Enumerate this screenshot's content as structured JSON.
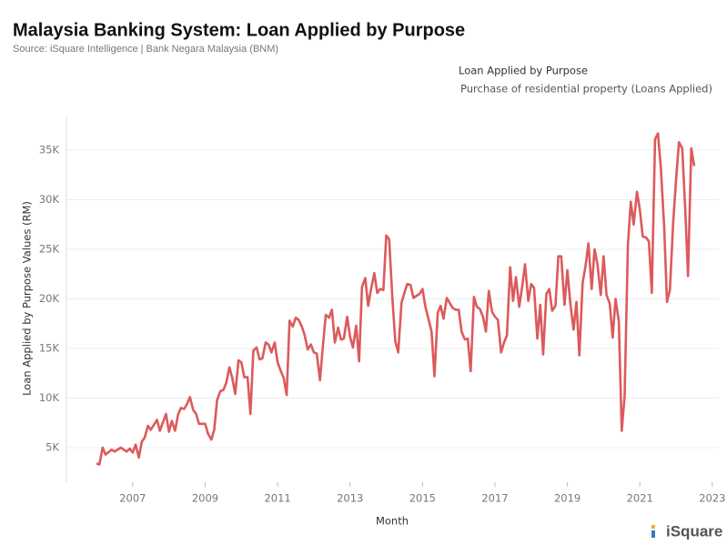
{
  "chart_data": {
    "type": "line",
    "title": "Malaysia Banking System: Loan Applied by Purpose",
    "subtitle": "Source: iSquare Intelligence | Bank Negara Malaysia (BNM)",
    "legend_title": "Loan Applied by Purpose",
    "x_label": "Month",
    "y_label": "Loan Applied by Purpose Values (RM)",
    "logo": "iSquare",
    "grid": true,
    "xlim": [
      2005.17,
      2023.18
    ],
    "ylim": [
      1510,
      38400
    ],
    "xticks": [
      2007,
      2009,
      2011,
      2013,
      2015,
      2017,
      2019,
      2021,
      2023
    ],
    "yticks": [
      {
        "value": 5000,
        "label": "5K"
      },
      {
        "value": 10000,
        "label": "10K"
      },
      {
        "value": 15000,
        "label": "15K"
      },
      {
        "value": 20000,
        "label": "20K"
      },
      {
        "value": 25000,
        "label": "25K"
      },
      {
        "value": 30000,
        "label": "30K"
      },
      {
        "value": 35000,
        "label": "35K"
      }
    ],
    "x": [
      2006.0,
      2006.08,
      2006.17,
      2006.25,
      2006.42,
      2006.5,
      2006.67,
      2006.83,
      2006.92,
      2007.0,
      2007.08,
      2007.17,
      2007.25,
      2007.33,
      2007.42,
      2007.5,
      2007.67,
      2007.75,
      2007.92,
      2008.0,
      2008.08,
      2008.17,
      2008.25,
      2008.33,
      2008.42,
      2008.5,
      2008.58,
      2008.67,
      2008.75,
      2008.83,
      2009.0,
      2009.08,
      2009.17,
      2009.25,
      2009.33,
      2009.42,
      2009.5,
      2009.58,
      2009.67,
      2009.75,
      2009.83,
      2009.92,
      2010.0,
      2010.08,
      2010.17,
      2010.25,
      2010.33,
      2010.42,
      2010.5,
      2010.58,
      2010.67,
      2010.75,
      2010.83,
      2010.92,
      2011.0,
      2011.08,
      2011.17,
      2011.25,
      2011.33,
      2011.42,
      2011.5,
      2011.58,
      2011.67,
      2011.75,
      2011.83,
      2011.92,
      2012.0,
      2012.08,
      2012.17,
      2012.25,
      2012.33,
      2012.42,
      2012.5,
      2012.58,
      2012.67,
      2012.75,
      2012.83,
      2012.92,
      2013.0,
      2013.08,
      2013.17,
      2013.25,
      2013.33,
      2013.42,
      2013.5,
      2013.58,
      2013.67,
      2013.75,
      2013.83,
      2013.92,
      2014.0,
      2014.08,
      2014.17,
      2014.25,
      2014.33,
      2014.42,
      2014.5,
      2014.58,
      2014.67,
      2014.75,
      2014.83,
      2014.92,
      2015.0,
      2015.08,
      2015.17,
      2015.25,
      2015.33,
      2015.42,
      2015.5,
      2015.58,
      2015.67,
      2015.75,
      2015.83,
      2015.92,
      2016.0,
      2016.08,
      2016.17,
      2016.25,
      2016.33,
      2016.42,
      2016.5,
      2016.58,
      2016.67,
      2016.75,
      2016.83,
      2016.92,
      2017.0,
      2017.08,
      2017.17,
      2017.25,
      2017.33,
      2017.42,
      2017.5,
      2017.58,
      2017.67,
      2017.75,
      2017.83,
      2017.92,
      2018.0,
      2018.08,
      2018.17,
      2018.25,
      2018.33,
      2018.42,
      2018.5,
      2018.58,
      2018.67,
      2018.75,
      2018.83,
      2018.92,
      2019.0,
      2019.08,
      2019.17,
      2019.25,
      2019.33,
      2019.42,
      2019.5,
      2019.58,
      2019.67,
      2019.75,
      2019.83,
      2019.92,
      2020.0,
      2020.08,
      2020.17,
      2020.25,
      2020.33,
      2020.42,
      2020.5,
      2020.58,
      2020.67,
      2020.75,
      2020.83,
      2020.92,
      2021.0,
      2021.08,
      2021.17,
      2021.25,
      2021.33,
      2021.42,
      2021.5,
      2021.58,
      2021.67,
      2021.75,
      2021.83,
      2021.92,
      2022.0,
      2022.08,
      2022.17,
      2022.25,
      2022.33,
      2022.42,
      2022.5
    ],
    "series": [
      {
        "name": "Purchase of residential property (Loans Applied)",
        "color": "#dc5a5c",
        "values": [
          3400,
          3300,
          5000,
          4300,
          4800,
          4600,
          5000,
          4600,
          4900,
          4500,
          5300,
          4000,
          5600,
          6000,
          7200,
          6800,
          7800,
          6700,
          8400,
          6600,
          7700,
          6700,
          8300,
          9000,
          8900,
          9400,
          10100,
          8800,
          8400,
          7400,
          7400,
          6400,
          5800,
          6800,
          9800,
          10700,
          10800,
          11500,
          13100,
          12000,
          10400,
          13800,
          13600,
          12100,
          12100,
          8400,
          14800,
          15100,
          13900,
          14000,
          15600,
          15400,
          14600,
          15600,
          13600,
          12800,
          12000,
          10300,
          17800,
          17200,
          18100,
          17900,
          17200,
          16300,
          14900,
          15400,
          14600,
          14500,
          11800,
          15200,
          18400,
          18100,
          18900,
          15600,
          17100,
          15900,
          16000,
          18200,
          16200,
          15100,
          17300,
          13700,
          21200,
          22100,
          19300,
          21000,
          22600,
          20600,
          21000,
          20900,
          26400,
          26000,
          20000,
          15700,
          14600,
          19600,
          20600,
          21500,
          21400,
          20100,
          20300,
          20500,
          21000,
          19200,
          17900,
          16700,
          12200,
          18600,
          19300,
          18000,
          20100,
          19600,
          19100,
          18900,
          18900,
          16700,
          15900,
          16000,
          12700,
          20200,
          19200,
          19000,
          18200,
          16700,
          20800,
          18700,
          18200,
          17900,
          14600,
          15600,
          16300,
          23200,
          19800,
          22200,
          19200,
          21200,
          23500,
          19800,
          21500,
          21100,
          16000,
          19400,
          14400,
          20500,
          21000,
          18800,
          19300,
          24300,
          24300,
          19400,
          22900,
          19600,
          16900,
          19700,
          14300,
          21600,
          23300,
          25600,
          21000,
          25000,
          23500,
          20400,
          24300,
          20400,
          19500,
          16100,
          20000,
          17700,
          6700,
          10200,
          25400,
          29800,
          27500,
          30800,
          29000,
          26300,
          26200,
          25800,
          20600,
          36100,
          36700,
          33200,
          27400,
          19700,
          20900,
          27700,
          32000,
          35800,
          35200,
          29300,
          22300,
          35200,
          33400
        ]
      }
    ]
  }
}
